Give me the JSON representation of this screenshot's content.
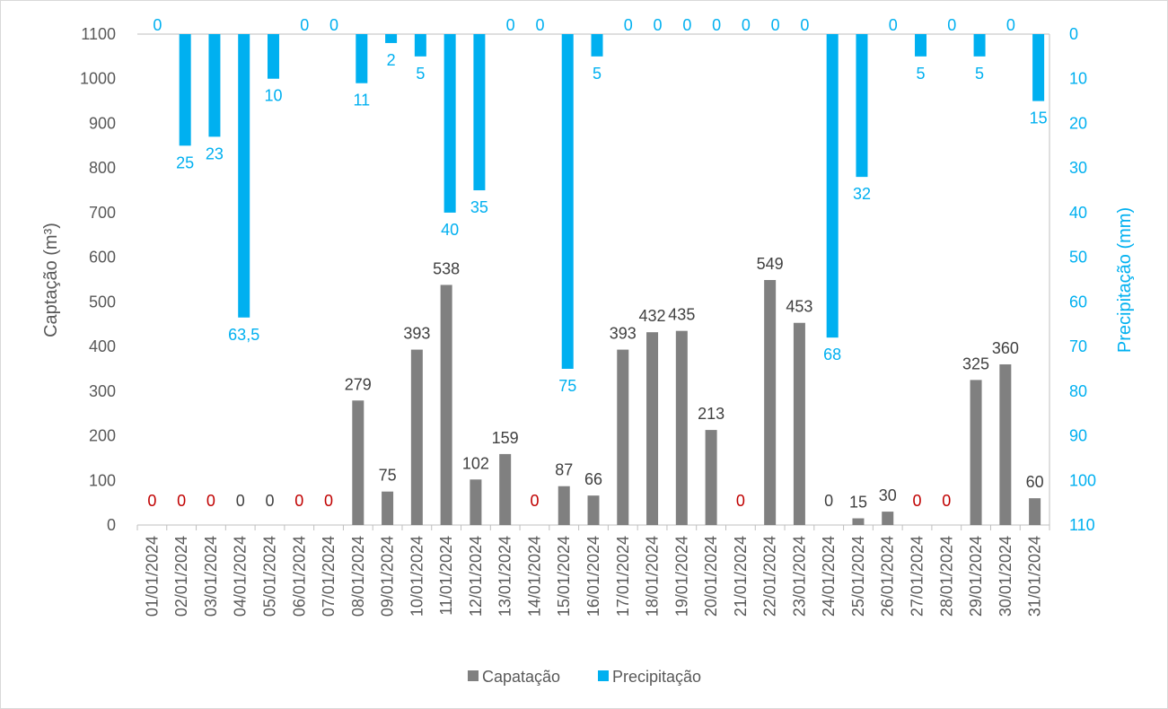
{
  "chart_data": {
    "type": "bar",
    "title": "",
    "categories": [
      "01/01/2024",
      "02/01/2024",
      "03/01/2024",
      "04/01/2024",
      "05/01/2024",
      "06/01/2024",
      "07/01/2024",
      "08/01/2024",
      "09/01/2024",
      "10/01/2024",
      "11/01/2024",
      "12/01/2024",
      "13/01/2024",
      "14/01/2024",
      "15/01/2024",
      "16/01/2024",
      "17/01/2024",
      "18/01/2024",
      "19/01/2024",
      "20/01/2024",
      "21/01/2024",
      "22/01/2024",
      "23/01/2024",
      "24/01/2024",
      "25/01/2024",
      "26/01/2024",
      "27/01/2024",
      "28/01/2024",
      "29/01/2024",
      "30/01/2024",
      "31/01/2024"
    ],
    "series": [
      {
        "name": "Capatação",
        "axis": "left",
        "color": "#808080",
        "values": [
          0,
          0,
          0,
          0,
          0,
          0,
          0,
          279,
          75,
          393,
          538,
          102,
          159,
          0,
          87,
          66,
          393,
          432,
          435,
          213,
          0,
          549,
          453,
          0,
          15,
          30,
          0,
          0,
          325,
          360,
          60
        ],
        "zero_label_colors": [
          "#c00000",
          "#c00000",
          "#c00000",
          "#404040",
          "#404040",
          "#c00000",
          "#c00000",
          null,
          null,
          null,
          null,
          null,
          null,
          "#c00000",
          null,
          null,
          null,
          null,
          null,
          null,
          "#c00000",
          null,
          null,
          "#404040",
          null,
          null,
          "#c00000",
          "#c00000",
          null,
          null,
          null
        ]
      },
      {
        "name": "Precipitação",
        "axis": "right",
        "color": "#00b0f0",
        "values": [
          0,
          25,
          23,
          63.5,
          10,
          0,
          0,
          11,
          2,
          5,
          40,
          35,
          0,
          0,
          75,
          5,
          0,
          0,
          0,
          0,
          0,
          0,
          0,
          68,
          32,
          0,
          5,
          0,
          5,
          0,
          15
        ],
        "labels": [
          "0",
          "25",
          "23",
          "63,5",
          "10",
          "0",
          "0",
          "11",
          "2",
          "5",
          "40",
          "35",
          "0",
          "0",
          "75",
          "5",
          "0",
          "0",
          "0",
          "0",
          "0",
          "0",
          "0",
          "68",
          "32",
          "0",
          "5",
          "0",
          "5",
          "0",
          "15"
        ]
      }
    ],
    "ylabel": "Captação (m³)",
    "y2label": "Precipitação (mm)",
    "ylim": [
      0,
      1100
    ],
    "yticks": [
      "0",
      "100",
      "200",
      "300",
      "400",
      "500",
      "600",
      "700",
      "800",
      "900",
      "1000",
      "1100"
    ],
    "y2lim": [
      0,
      110
    ],
    "y2_reversed": true,
    "y2ticks": [
      "0",
      "10",
      "20",
      "30",
      "40",
      "50",
      "60",
      "70",
      "80",
      "90",
      "100",
      "110"
    ],
    "grid": false,
    "legend_position": "bottom"
  }
}
